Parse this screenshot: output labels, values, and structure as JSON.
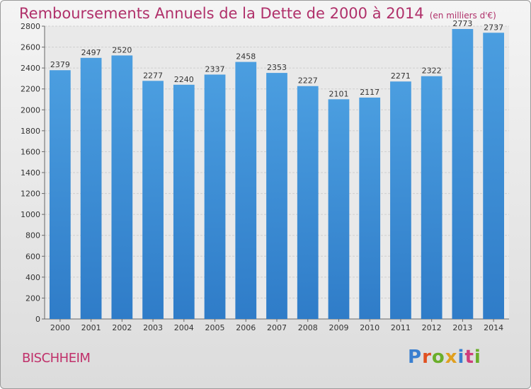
{
  "chart_data": {
    "type": "bar",
    "title": "Remboursements Annuels de la Dette de 2000 à 2014",
    "unit": "(en milliers d'€)",
    "categories": [
      "2000",
      "2001",
      "2002",
      "2003",
      "2004",
      "2005",
      "2006",
      "2007",
      "2008",
      "2009",
      "2010",
      "2011",
      "2012",
      "2013",
      "2014"
    ],
    "values": [
      2379,
      2497,
      2520,
      2277,
      2240,
      2337,
      2458,
      2353,
      2227,
      2101,
      2117,
      2271,
      2322,
      2773,
      2737
    ],
    "ylim": [
      0,
      2800
    ],
    "yticks": [
      0,
      200,
      400,
      600,
      800,
      1000,
      1200,
      1400,
      1600,
      1800,
      2000,
      2200,
      2400,
      2600,
      2800
    ],
    "grid": true,
    "bar_color": "#4b9ee0",
    "bar_color_dark": "#2f7cc8"
  },
  "footer": {
    "place": "BISCHHEIM",
    "logo": "Proxiti"
  },
  "colors": {
    "title": "#b0306a",
    "place": "#c0306a"
  }
}
